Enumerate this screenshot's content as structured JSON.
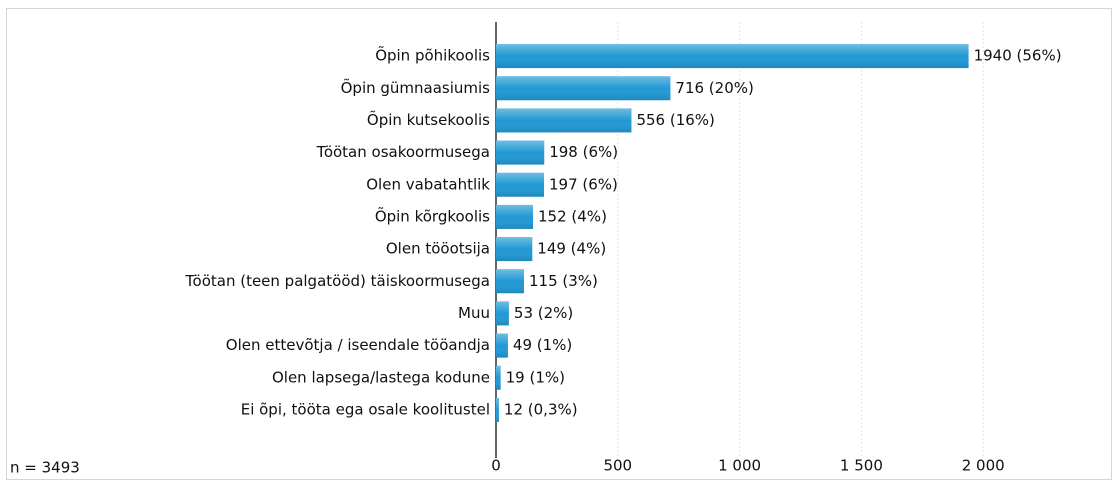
{
  "chart_data": {
    "type": "bar",
    "orientation": "horizontal",
    "categories": [
      "Õpin põhikoolis",
      "Õpin gümnaasiumis",
      "Õpin kutsekoolis",
      "Töötan osakoormusega",
      "Olen vabatahtlik",
      "Õpin kõrgkoolis",
      "Olen tööotsija",
      "Töötan (teen palgatööd) täiskoormusega",
      "Muu",
      "Olen ettevõtja / iseendale tööandja",
      "Olen lapsega/lastega kodune",
      "Ei õpi, tööta ega osale koolitustel"
    ],
    "values": [
      1940,
      716,
      556,
      198,
      197,
      152,
      149,
      115,
      53,
      49,
      19,
      12
    ],
    "value_labels": [
      "1940 (56%)",
      "716 (20%)",
      "556 (16%)",
      "198 (6%)",
      "197 (6%)",
      "152 (4%)",
      "149 (4%)",
      "115 (3%)",
      "53 (2%)",
      "49 (1%)",
      "19 (1%)",
      "12 (0,3%)"
    ],
    "color": "#2199d4",
    "xlim": [
      0,
      2500
    ],
    "xticks": [
      0,
      500,
      {
        "value": 1000,
        "label": "1 000"
      },
      {
        "value": 1500,
        "label": "1 500"
      },
      {
        "value": 2000,
        "label": "2 000"
      }
    ],
    "grid": true,
    "annotation": "n = 3493"
  }
}
